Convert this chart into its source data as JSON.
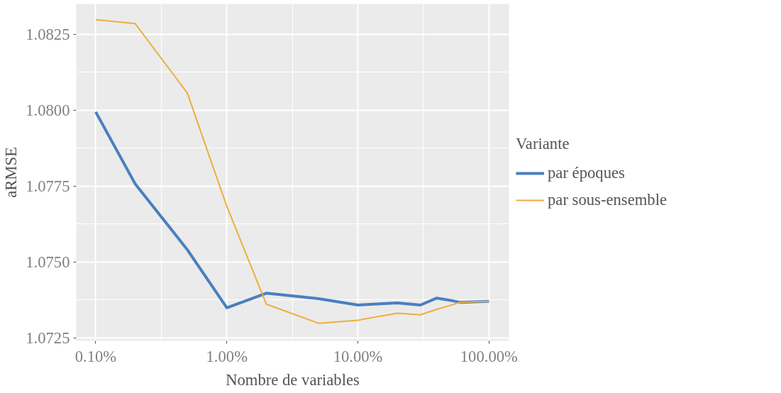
{
  "chart_data": {
    "type": "line",
    "xlabel": "Nombre de variables",
    "ylabel": "aRMSE",
    "legend_title": "Variante",
    "log": "x",
    "grid": true,
    "legend": "right",
    "xlim": [
      0.071,
      142
    ],
    "ylim": [
      1.0724,
      1.0835
    ],
    "xticks": [
      {
        "value": 0.1,
        "label": "0.10%"
      },
      {
        "value": 1,
        "label": "1.00%"
      },
      {
        "value": 10,
        "label": "10.00%"
      },
      {
        "value": 100,
        "label": "100.00%"
      }
    ],
    "yticks": [
      {
        "value": 1.0725,
        "label": "1.0725"
      },
      {
        "value": 1.075,
        "label": "1.0750"
      },
      {
        "value": 1.0775,
        "label": "1.0775"
      },
      {
        "value": 1.08,
        "label": "1.0800"
      },
      {
        "value": 1.0825,
        "label": "1.0825"
      }
    ],
    "x": [
      0.1,
      0.2,
      0.5,
      1,
      2,
      5,
      10,
      20,
      30,
      40,
      50,
      60,
      100
    ],
    "series": [
      {
        "name": "par époques",
        "color": "#4a7fbf",
        "values": [
          1.07994,
          1.07757,
          1.0754,
          1.07349,
          1.07397,
          1.07379,
          1.07358,
          1.07365,
          1.07358,
          1.07381,
          1.07374,
          1.07367,
          1.0737
        ]
      },
      {
        "name": "par sous-ensemble",
        "color": "#ebaf3e",
        "values": [
          1.08298,
          1.08285,
          1.08056,
          1.07683,
          1.07361,
          1.07298,
          1.07308,
          1.07331,
          1.07326,
          1.07344,
          1.07356,
          1.07367,
          1.0737
        ]
      }
    ]
  }
}
